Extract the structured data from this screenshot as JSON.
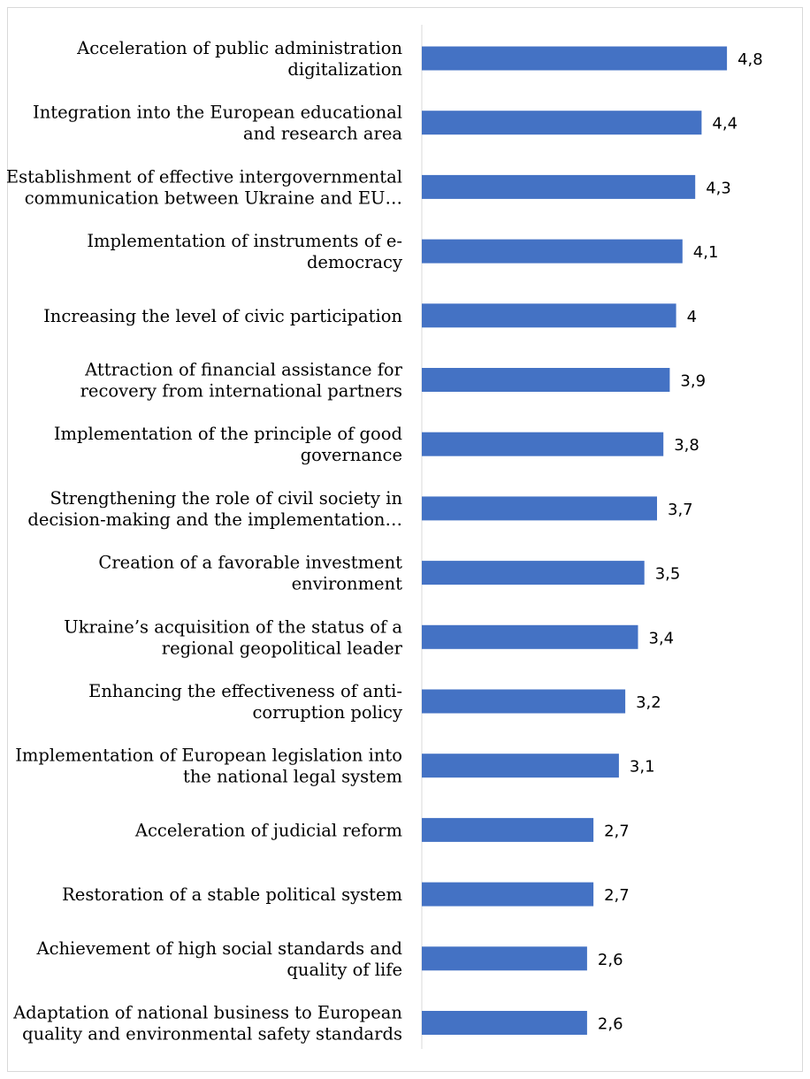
{
  "chart_data": {
    "type": "bar",
    "orientation": "horizontal",
    "categories": [
      [
        "Acceleration of public administration",
        "digitalization"
      ],
      [
        "Integration into the European educational",
        "and research area"
      ],
      [
        "Establishment of effective intergovernmental",
        "communication between Ukraine and EU…"
      ],
      [
        "Implementation of instruments of e-",
        "democracy"
      ],
      [
        "Increasing the level of civic participation"
      ],
      [
        "Attraction of financial assistance for",
        "recovery from international partners"
      ],
      [
        "Implementation of the principle of good",
        "governance"
      ],
      [
        "Strengthening the role of civil society in",
        "decision-making and the implementation…"
      ],
      [
        "Creation of a favorable investment",
        "environment"
      ],
      [
        "Ukraine’s acquisition of the status of a",
        "regional geopolitical leader"
      ],
      [
        "Enhancing the effectiveness of anti-",
        "corruption policy"
      ],
      [
        "Implementation of European legislation into",
        "the national legal system"
      ],
      [
        "Acceleration of judicial reform"
      ],
      [
        "Restoration of a stable political system"
      ],
      [
        "Achievement of high social standards and",
        "quality of life"
      ],
      [
        "Adaptation of national business to European",
        "quality and environmental safety standards"
      ]
    ],
    "values": [
      4.8,
      4.4,
      4.3,
      4.1,
      4.0,
      3.9,
      3.8,
      3.7,
      3.5,
      3.4,
      3.2,
      3.1,
      2.7,
      2.7,
      2.6,
      2.6
    ],
    "value_labels": [
      "4,8",
      "4,4",
      "4,3",
      "4,1",
      "4",
      "3,9",
      "3,8",
      "3,7",
      "3,5",
      "3,4",
      "3,2",
      "3,1",
      "2,7",
      "2,7",
      "2,6",
      "2,6"
    ],
    "xlim": [
      0,
      5
    ],
    "bar_color": "#4472C4",
    "grid": false,
    "legend": false
  }
}
